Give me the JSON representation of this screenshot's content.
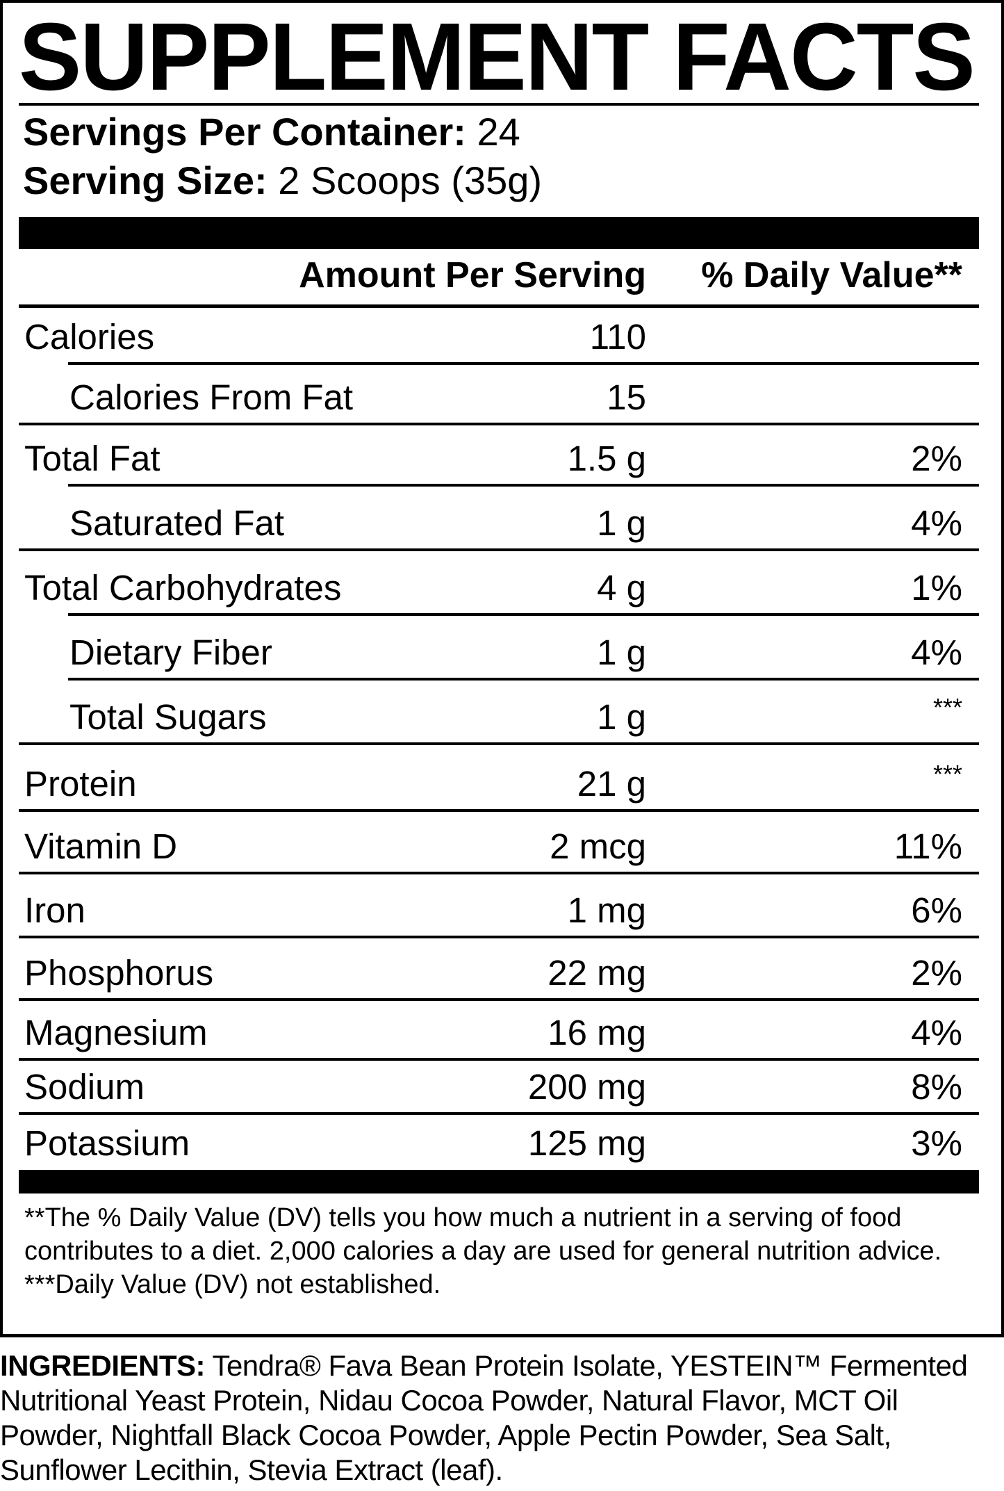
{
  "title": "SUPPLEMENT FACTS",
  "servings": {
    "per_container_label": "Servings Per Container:",
    "per_container_value": "24",
    "size_label": "Serving Size:",
    "size_value": "2 Scoops (35g)"
  },
  "header": {
    "amount": "Amount Per Serving",
    "dv": "% Daily Value**"
  },
  "rows": [
    {
      "label": "Calories",
      "amount": "110",
      "dv": "",
      "sub": false
    },
    {
      "label": "Calories From Fat",
      "amount": "15",
      "dv": "",
      "sub": true
    },
    {
      "label": "Total Fat",
      "amount": "1.5 g",
      "dv": "2%",
      "sub": false
    },
    {
      "label": "Saturated Fat",
      "amount": "1 g",
      "dv": "4%",
      "sub": true
    },
    {
      "label": "Total Carbohydrates",
      "amount": "4 g",
      "dv": "1%",
      "sub": false
    },
    {
      "label": "Dietary Fiber",
      "amount": "1 g",
      "dv": "4%",
      "sub": true
    },
    {
      "label": "Total Sugars",
      "amount": "1 g",
      "dv": "***",
      "sub": true
    },
    {
      "label": "Protein",
      "amount": "21 g",
      "dv": "***",
      "sub": false
    },
    {
      "label": "Vitamin D",
      "amount": "2 mcg",
      "dv": "11%",
      "sub": false
    },
    {
      "label": "Iron",
      "amount": "1 mg",
      "dv": "6%",
      "sub": false
    },
    {
      "label": "Phosphorus",
      "amount": "22 mg",
      "dv": "2%",
      "sub": false
    },
    {
      "label": "Magnesium",
      "amount": "16 mg",
      "dv": "4%",
      "sub": false
    },
    {
      "label": "Sodium",
      "amount": "200 mg",
      "dv": "8%",
      "sub": false
    },
    {
      "label": "Potassium",
      "amount": "125 mg",
      "dv": "3%",
      "sub": false
    }
  ],
  "footnotes": {
    "dv_note": "**The % Daily Value (DV) tells you how much a nutrient in a serving of food contributes to a diet. 2,000 calories a day are used for general nutrition advice.",
    "not_established": "***Daily Value (DV) not established."
  },
  "ingredients": {
    "label": "INGREDIENTS:",
    "text": "Tendra® Fava Bean Protein Isolate, YESTEIN™ Fermented Nutritional Yeast Protein, Nidau Cocoa Powder, Natural Flavor, MCT Oil Powder, Nightfall Black Cocoa Powder, Apple Pectin Powder, Sea Salt, Sunflower Lecithin, Stevia Extract (leaf)."
  }
}
